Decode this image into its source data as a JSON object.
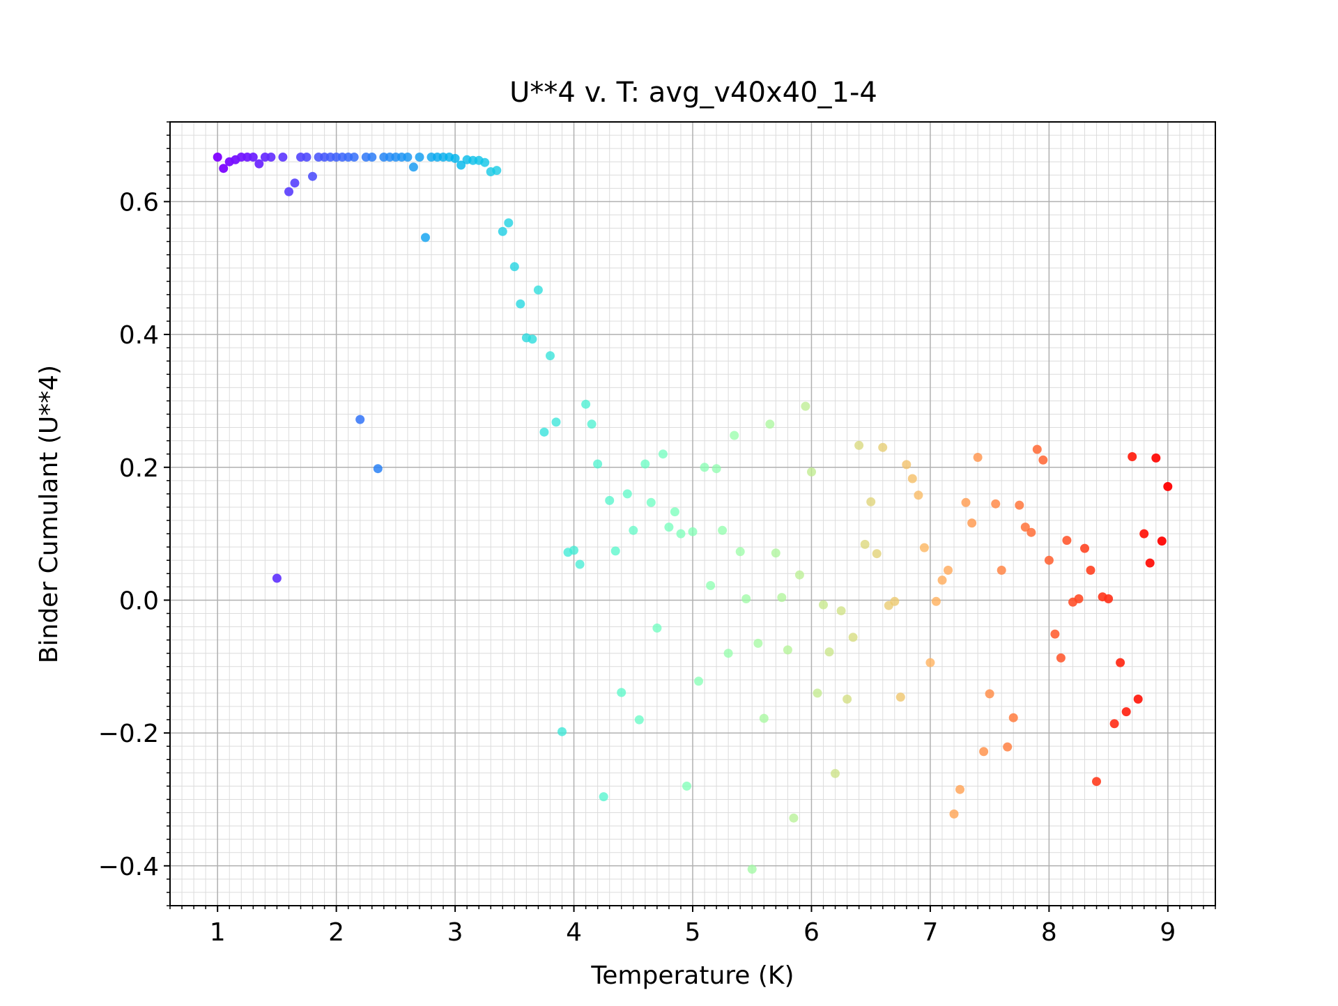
{
  "chart_data": {
    "type": "scatter",
    "title": "U**4 v. T: avg_v40x40_1-4",
    "xlabel": "Temperature (K)",
    "ylabel": "Binder Cumulant (U**4)",
    "xlim": [
      0.6,
      9.4
    ],
    "ylim": [
      -0.46,
      0.72
    ],
    "x_ticks": [
      1,
      2,
      3,
      4,
      5,
      6,
      7,
      8,
      9
    ],
    "y_ticks": [
      -0.4,
      -0.2,
      0.0,
      0.2,
      0.4,
      0.6
    ],
    "x_tick_labels": [
      "1",
      "2",
      "3",
      "4",
      "5",
      "6",
      "7",
      "8",
      "9"
    ],
    "y_tick_labels": [
      "−0.4",
      "−0.2",
      "0.0",
      "0.2",
      "0.4",
      "0.6"
    ],
    "grid": true,
    "minor_grid": true,
    "colormap": "rainbow",
    "x": [
      1.0,
      1.05,
      1.1,
      1.15,
      1.2,
      1.25,
      1.3,
      1.35,
      1.4,
      1.45,
      1.5,
      1.55,
      1.6,
      1.65,
      1.7,
      1.75,
      1.8,
      1.85,
      1.9,
      1.95,
      2.0,
      2.05,
      2.1,
      2.15,
      2.2,
      2.25,
      2.3,
      2.35,
      2.4,
      2.45,
      2.5,
      2.55,
      2.6,
      2.65,
      2.7,
      2.75,
      2.8,
      2.85,
      2.9,
      2.95,
      3.0,
      3.05,
      3.1,
      3.15,
      3.2,
      3.25,
      3.3,
      3.35,
      3.4,
      3.45,
      3.5,
      3.55,
      3.6,
      3.65,
      3.7,
      3.75,
      3.8,
      3.85,
      3.9,
      3.95,
      4.0,
      4.05,
      4.1,
      4.15,
      4.2,
      4.25,
      4.3,
      4.35,
      4.4,
      4.45,
      4.5,
      4.55,
      4.6,
      4.65,
      4.7,
      4.75,
      4.8,
      4.85,
      4.9,
      4.95,
      5.0,
      5.05,
      5.1,
      5.15,
      5.2,
      5.25,
      5.3,
      5.35,
      5.4,
      5.45,
      5.5,
      5.55,
      5.6,
      5.65,
      5.7,
      5.75,
      5.8,
      5.85,
      5.9,
      5.95,
      6.0,
      6.05,
      6.1,
      6.15,
      6.2,
      6.25,
      6.3,
      6.35,
      6.4,
      6.45,
      6.5,
      6.55,
      6.6,
      6.65,
      6.7,
      6.75,
      6.8,
      6.85,
      6.9,
      6.95,
      7.0,
      7.05,
      7.1,
      7.15,
      7.2,
      7.25,
      7.3,
      7.35,
      7.4,
      7.45,
      7.5,
      7.55,
      7.6,
      7.65,
      7.7,
      7.75,
      7.8,
      7.85,
      7.9,
      7.95,
      8.0,
      8.05,
      8.1,
      8.15,
      8.2,
      8.25,
      8.3,
      8.35,
      8.4,
      8.45,
      8.5,
      8.55,
      8.6,
      8.65,
      8.7,
      8.75,
      8.8,
      8.85,
      8.9,
      8.95,
      9.0
    ],
    "y": [
      0.667,
      0.65,
      0.66,
      0.663,
      0.667,
      0.667,
      0.667,
      0.657,
      0.667,
      0.667,
      0.033,
      0.667,
      0.615,
      0.628,
      0.667,
      0.667,
      0.638,
      0.667,
      0.667,
      0.667,
      0.667,
      0.667,
      0.667,
      0.667,
      0.272,
      0.667,
      0.667,
      0.198,
      0.667,
      0.667,
      0.667,
      0.667,
      0.667,
      0.652,
      0.667,
      0.546,
      0.667,
      0.667,
      0.667,
      0.667,
      0.665,
      0.655,
      0.663,
      0.662,
      0.662,
      0.659,
      0.645,
      0.647,
      0.555,
      0.568,
      0.502,
      0.446,
      0.395,
      0.393,
      0.467,
      0.253,
      0.368,
      0.268,
      -0.198,
      0.072,
      0.075,
      0.054,
      0.295,
      0.265,
      0.205,
      -0.296,
      0.15,
      0.074,
      -0.139,
      0.16,
      0.105,
      -0.18,
      0.205,
      0.147,
      -0.042,
      0.22,
      0.11,
      0.133,
      0.1,
      -0.28,
      0.103,
      -0.122,
      0.2,
      0.022,
      0.198,
      0.105,
      -0.08,
      0.248,
      0.073,
      0.002,
      -0.405,
      -0.065,
      -0.178,
      0.265,
      0.071,
      0.004,
      -0.075,
      -0.328,
      0.038,
      0.292,
      0.193,
      -0.14,
      -0.007,
      -0.078,
      -0.261,
      -0.016,
      -0.149,
      -0.056,
      0.233,
      0.084,
      0.148,
      0.07,
      0.23,
      -0.008,
      -0.002,
      -0.146,
      0.204,
      0.183,
      0.158,
      0.079,
      -0.094,
      -0.002,
      0.03,
      0.045,
      -0.322,
      -0.285,
      0.147,
      0.116,
      0.215,
      -0.228,
      -0.141,
      0.145,
      0.045,
      -0.221,
      -0.177,
      0.143,
      0.11,
      0.102,
      0.227,
      0.211,
      0.06,
      -0.051,
      -0.087,
      0.09,
      -0.003,
      0.002,
      0.078,
      0.045,
      -0.273,
      0.005,
      0.002,
      -0.186,
      -0.094,
      -0.168,
      0.216,
      -0.149,
      0.1,
      0.056,
      0.214,
      0.089,
      0.171
    ]
  }
}
